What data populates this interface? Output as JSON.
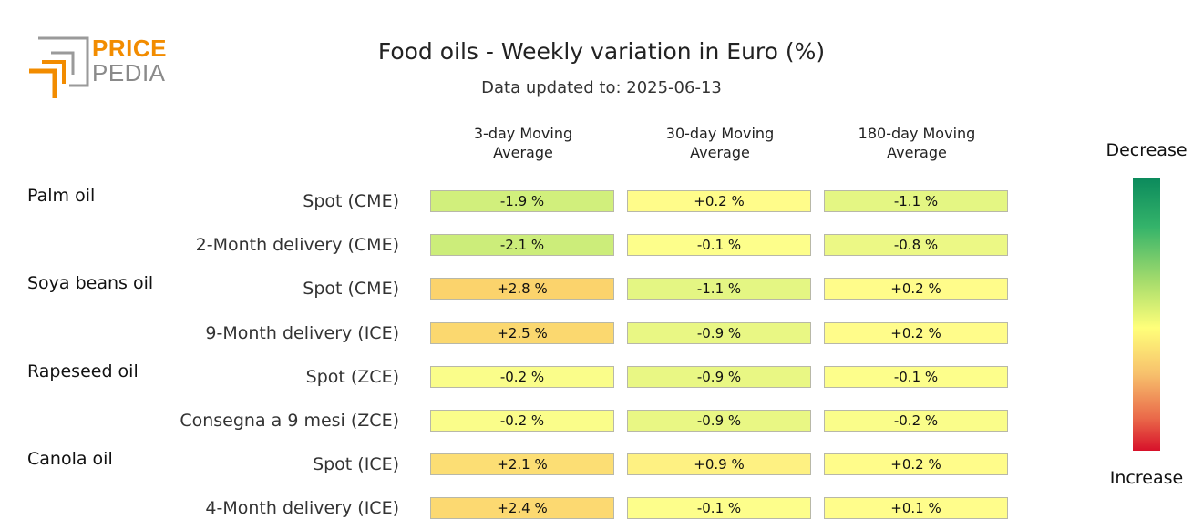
{
  "logo": {
    "line1": "PRICE",
    "line2": "PEDIA"
  },
  "header": {
    "title": "Food oils - Weekly variation in Euro (%)",
    "subtitle": "Data updated to: 2025-06-13"
  },
  "legend": {
    "top": "Decrease",
    "bottom": "Increase"
  },
  "colors": {
    "decrease": "#0b8a5c",
    "neutral": "#ffff7a",
    "increase": "#d7112a",
    "logo_orange": "#f28c00",
    "logo_gray": "#8a8a8a"
  },
  "chart_data": {
    "type": "table",
    "title": "Food oils - Weekly variation in Euro (%)",
    "columns": [
      "3-day Moving Average",
      "30-day Moving Average",
      "180-day Moving Average"
    ],
    "groups": [
      {
        "name": "Palm oil",
        "rows": [
          {
            "label": "Spot (CME)",
            "values": [
              -1.9,
              0.2,
              -1.1
            ],
            "text": [
              "-1.9 %",
              "+0.2 %",
              "-1.1 %"
            ]
          },
          {
            "label": "2-Month delivery (CME)",
            "values": [
              -2.1,
              -0.1,
              -0.8
            ],
            "text": [
              "-2.1 %",
              "-0.1 %",
              "-0.8 %"
            ]
          }
        ]
      },
      {
        "name": "Soya beans oil",
        "rows": [
          {
            "label": "Spot (CME)",
            "values": [
              2.8,
              -1.1,
              0.2
            ],
            "text": [
              "+2.8 %",
              "-1.1 %",
              "+0.2 %"
            ]
          },
          {
            "label": "9-Month delivery (ICE)",
            "values": [
              2.5,
              -0.9,
              0.2
            ],
            "text": [
              "+2.5 %",
              "-0.9 %",
              "+0.2 %"
            ]
          }
        ]
      },
      {
        "name": "Rapeseed oil",
        "rows": [
          {
            "label": "Spot (ZCE)",
            "values": [
              -0.2,
              -0.9,
              -0.1
            ],
            "text": [
              "-0.2 %",
              "-0.9 %",
              "-0.1 %"
            ]
          },
          {
            "label": "Consegna a 9 mesi (ZCE)",
            "values": [
              -0.2,
              -0.9,
              -0.2
            ],
            "text": [
              "-0.2 %",
              "-0.9 %",
              "-0.2 %"
            ]
          }
        ]
      },
      {
        "name": "Canola oil",
        "rows": [
          {
            "label": "Spot (ICE)",
            "values": [
              2.1,
              0.9,
              0.2
            ],
            "text": [
              "+2.1 %",
              "+0.9 %",
              "+0.2 %"
            ]
          },
          {
            "label": "4-Month delivery (ICE)",
            "values": [
              2.4,
              -0.1,
              0.1
            ],
            "text": [
              "+2.4 %",
              "-0.1 %",
              "+0.1 %"
            ]
          }
        ]
      }
    ],
    "color_scale": {
      "min": -5,
      "max": 5
    }
  }
}
